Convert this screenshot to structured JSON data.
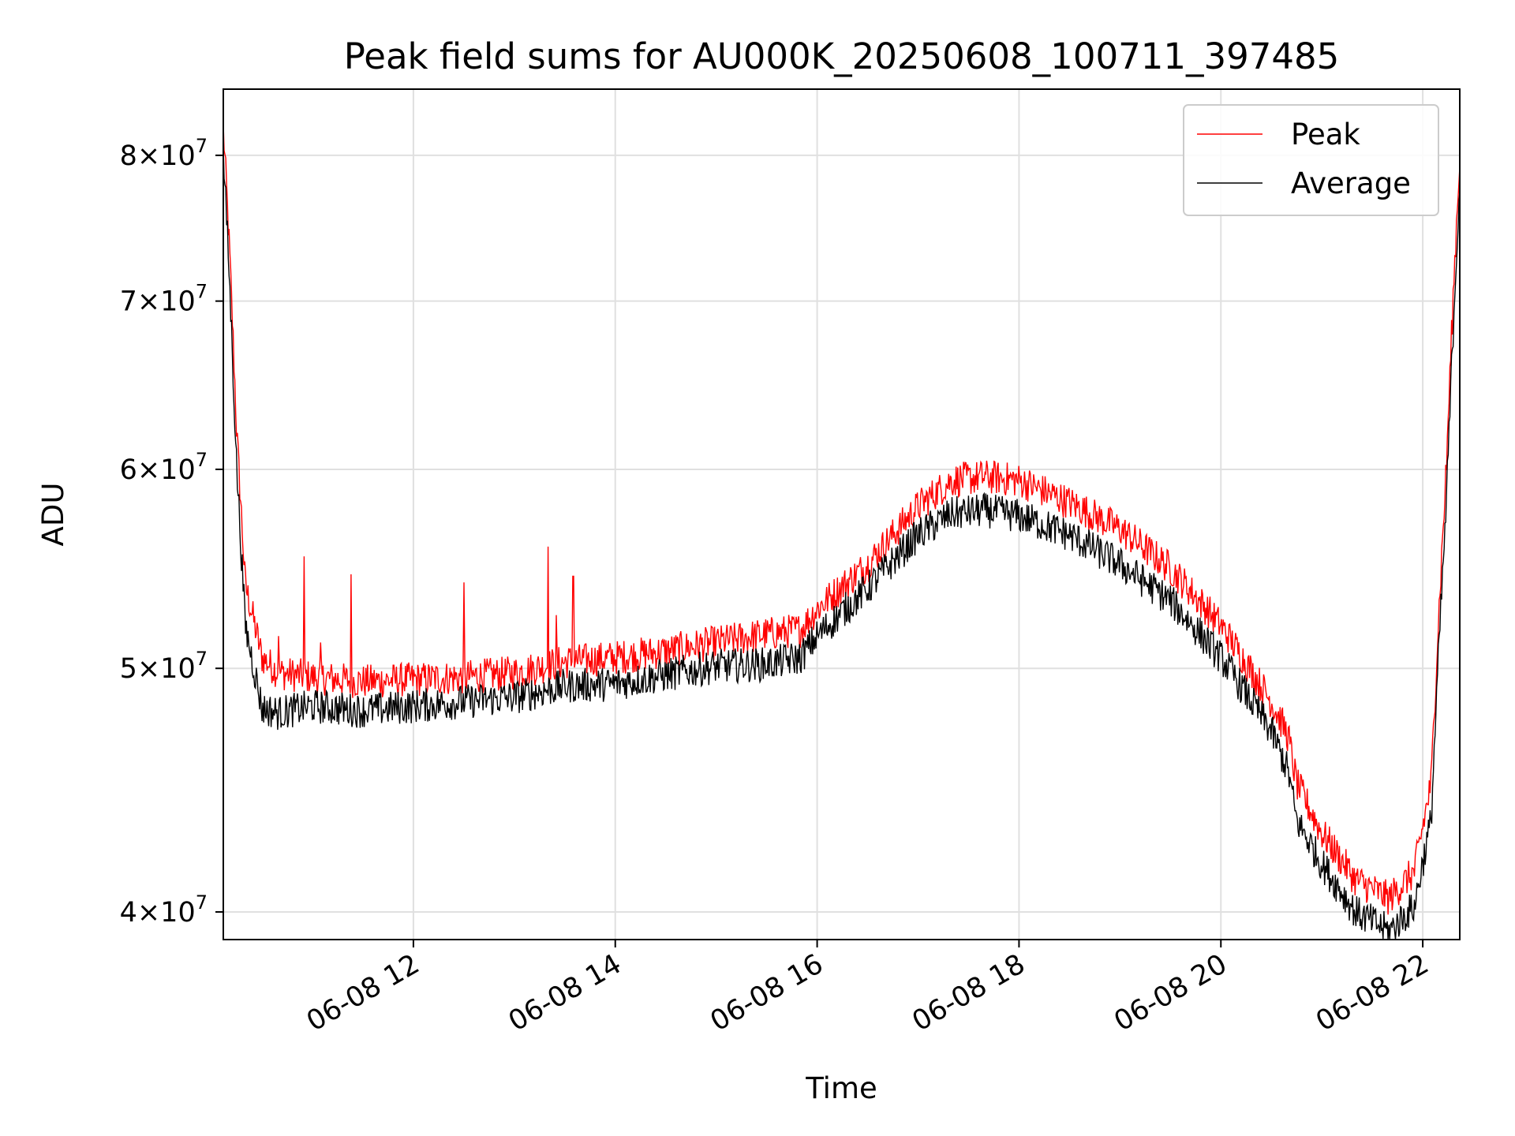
{
  "chart_data": {
    "type": "line",
    "title": "Peak field sums for AU000K_20250608_100711_397485",
    "xlabel": "Time",
    "ylabel": "ADU",
    "y_scale": "log",
    "ylim": [
      39000000,
      85000000
    ],
    "xlim": [
      "2025-06-08 10:07",
      "2025-06-08 22:22"
    ],
    "grid": true,
    "legend_placement": "top-right",
    "x_ticks": [
      {
        "t": "2025-06-08 12:00",
        "label": "06-08 12"
      },
      {
        "t": "2025-06-08 14:00",
        "label": "06-08 14"
      },
      {
        "t": "2025-06-08 16:00",
        "label": "06-08 16"
      },
      {
        "t": "2025-06-08 18:00",
        "label": "06-08 18"
      },
      {
        "t": "2025-06-08 20:00",
        "label": "06-08 20"
      },
      {
        "t": "2025-06-08 22:00",
        "label": "06-08 22"
      }
    ],
    "y_ticks": [
      {
        "value": 40000000,
        "mantissa": "4",
        "base": "10",
        "exp": "7"
      },
      {
        "value": 50000000,
        "mantissa": "5",
        "base": "10",
        "exp": "7"
      },
      {
        "value": 60000000,
        "mantissa": "6",
        "base": "10",
        "exp": "7"
      },
      {
        "value": 70000000,
        "mantissa": "7",
        "base": "10",
        "exp": "7"
      },
      {
        "value": 80000000,
        "mantissa": "8",
        "base": "10",
        "exp": "7"
      }
    ],
    "series": [
      {
        "name": "Peak",
        "color": "#ff0000",
        "points": [
          [
            "2025-06-08 10:07",
            82000000
          ],
          [
            "2025-06-08 10:10",
            75000000
          ],
          [
            "2025-06-08 10:15",
            62000000
          ],
          [
            "2025-06-08 10:20",
            54000000
          ],
          [
            "2025-06-08 10:30",
            50500000
          ],
          [
            "2025-06-08 10:40",
            49800000
          ],
          [
            "2025-06-08 11:00",
            49600000
          ],
          [
            "2025-06-08 11:30",
            49400000
          ],
          [
            "2025-06-08 12:00",
            49500000
          ],
          [
            "2025-06-08 12:30",
            49600000
          ],
          [
            "2025-06-08 13:00",
            49800000
          ],
          [
            "2025-06-08 13:30",
            50300000
          ],
          [
            "2025-06-08 14:00",
            50500000
          ],
          [
            "2025-06-08 14:30",
            50800000
          ],
          [
            "2025-06-08 15:00",
            51200000
          ],
          [
            "2025-06-08 15:30",
            51600000
          ],
          [
            "2025-06-08 15:50",
            51800000
          ],
          [
            "2025-06-08 16:00",
            52800000
          ],
          [
            "2025-06-08 16:30",
            55000000
          ],
          [
            "2025-06-08 17:00",
            58000000
          ],
          [
            "2025-06-08 17:20",
            59400000
          ],
          [
            "2025-06-08 17:40",
            59600000
          ],
          [
            "2025-06-08 18:00",
            59400000
          ],
          [
            "2025-06-08 18:30",
            58200000
          ],
          [
            "2025-06-08 19:00",
            56800000
          ],
          [
            "2025-06-08 19:30",
            54800000
          ],
          [
            "2025-06-08 20:00",
            52000000
          ],
          [
            "2025-06-08 20:30",
            48500000
          ],
          [
            "2025-06-08 20:40",
            47000000
          ],
          [
            "2025-06-08 20:45",
            45000000
          ],
          [
            "2025-06-08 21:00",
            43000000
          ],
          [
            "2025-06-08 21:20",
            41200000
          ],
          [
            "2025-06-08 21:40",
            40500000
          ],
          [
            "2025-06-08 21:55",
            41500000
          ],
          [
            "2025-06-08 22:05",
            45000000
          ],
          [
            "2025-06-08 22:14",
            60000000
          ],
          [
            "2025-06-08 22:22",
            80000000
          ]
        ]
      },
      {
        "name": "Average",
        "color": "#000000",
        "points": [
          [
            "2025-06-08 10:07",
            80000000
          ],
          [
            "2025-06-08 10:10",
            73000000
          ],
          [
            "2025-06-08 10:15",
            60000000
          ],
          [
            "2025-06-08 10:20",
            52000000
          ],
          [
            "2025-06-08 10:30",
            48200000
          ],
          [
            "2025-06-08 10:40",
            48000000
          ],
          [
            "2025-06-08 11:00",
            48300000
          ],
          [
            "2025-06-08 11:30",
            48100000
          ],
          [
            "2025-06-08 12:00",
            48300000
          ],
          [
            "2025-06-08 12:30",
            48500000
          ],
          [
            "2025-06-08 13:00",
            48700000
          ],
          [
            "2025-06-08 13:30",
            49200000
          ],
          [
            "2025-06-08 14:00",
            49300000
          ],
          [
            "2025-06-08 14:30",
            49700000
          ],
          [
            "2025-06-08 15:00",
            50100000
          ],
          [
            "2025-06-08 15:30",
            50200000
          ],
          [
            "2025-06-08 15:50",
            50500000
          ],
          [
            "2025-06-08 16:00",
            51500000
          ],
          [
            "2025-06-08 16:30",
            53800000
          ],
          [
            "2025-06-08 17:00",
            56500000
          ],
          [
            "2025-06-08 17:20",
            57600000
          ],
          [
            "2025-06-08 17:40",
            57800000
          ],
          [
            "2025-06-08 18:00",
            57500000
          ],
          [
            "2025-06-08 18:30",
            56500000
          ],
          [
            "2025-06-08 19:00",
            55000000
          ],
          [
            "2025-06-08 19:30",
            53200000
          ],
          [
            "2025-06-08 20:00",
            50500000
          ],
          [
            "2025-06-08 20:30",
            47200000
          ],
          [
            "2025-06-08 20:40",
            45500000
          ],
          [
            "2025-06-08 20:45",
            43500000
          ],
          [
            "2025-06-08 21:00",
            41800000
          ],
          [
            "2025-06-08 21:20",
            40000000
          ],
          [
            "2025-06-08 21:40",
            39300000
          ],
          [
            "2025-06-08 21:55",
            40200000
          ],
          [
            "2025-06-08 22:05",
            43500000
          ],
          [
            "2025-06-08 22:14",
            58000000
          ],
          [
            "2025-06-08 22:22",
            78000000
          ]
        ]
      }
    ],
    "spikes": [
      {
        "t": "2025-06-08 10:40",
        "value": 51500000
      },
      {
        "t": "2025-06-08 10:55",
        "value": 55400000
      },
      {
        "t": "2025-06-08 11:05",
        "value": 51200000
      },
      {
        "t": "2025-06-08 11:23",
        "value": 54500000
      },
      {
        "t": "2025-06-08 12:30",
        "value": 54100000
      },
      {
        "t": "2025-06-08 13:20",
        "value": 55900000
      },
      {
        "t": "2025-06-08 13:25",
        "value": 52500000
      },
      {
        "t": "2025-06-08 13:35",
        "value": 54400000
      }
    ]
  }
}
